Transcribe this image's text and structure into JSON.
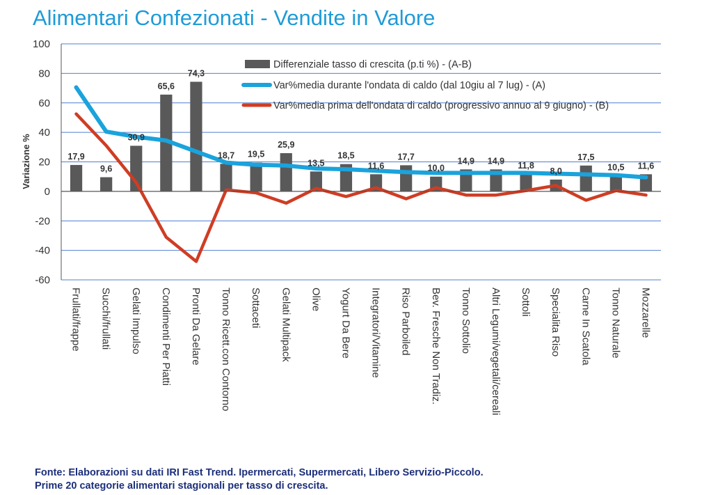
{
  "title": "Alimentari Confezionati - Vendite in Valore",
  "footer": {
    "line1": "Fonte: Elaborazioni su dati IRI Fast Trend. Ipermercati, Supermercati, Libero Servizio-Piccolo.",
    "line2": "Prime 20 categorie alimentari stagionali per tasso di crescita."
  },
  "chart_data": {
    "type": "bar",
    "ylabel": "Variazione %",
    "xlabel": "",
    "ylim": [
      -60,
      100
    ],
    "yticks": [
      100,
      80,
      60,
      40,
      20,
      0,
      -20,
      -40,
      -60
    ],
    "grid": true,
    "legend_position": "top-right",
    "categories": [
      "Frullati/frappe",
      "Succhi/frullati",
      "Gelati Impulso",
      "Condimenti Per Piatti",
      "Pronti Da Gelare",
      "Tonno Ricett.con Contorno",
      "Sottaceti",
      "Gelati Multipack",
      "Olive",
      "Yogurt Da Bere",
      "Integratori/Vitamine",
      "Riso Parboiled",
      "Bev. Fresche Non Tradiz.",
      "Tonno Sottolio",
      "Altri Legumi/vegetali/cereali",
      "Sottoli",
      "Specialita Riso",
      "Carne In Scatola",
      "Tonno Naturale",
      "Mozzarelle"
    ],
    "series": [
      {
        "name": "Differenziale tasso di crescita  (p.ti %) - (A-B)",
        "type": "bar",
        "color": "#595959",
        "values": [
          17.9,
          9.6,
          30.9,
          65.6,
          74.3,
          18.7,
          19.5,
          25.9,
          13.5,
          18.5,
          11.6,
          17.7,
          10.0,
          14.9,
          14.9,
          11.8,
          8.0,
          17.5,
          10.5,
          11.6
        ],
        "labels": [
          "17,9",
          "9,6",
          "30,9",
          "65,6",
          "74,3",
          "18,7",
          "19,5",
          "25,9",
          "13,5",
          "18,5",
          "11,6",
          "17,7",
          "10,0",
          "14,9",
          "14,9",
          "11,8",
          "8,0",
          "17,5",
          "10,5",
          "11,6"
        ]
      },
      {
        "name": "Var%media durante l'ondata di caldo (dal 10giu al 7 lug) - (A)",
        "type": "line",
        "color": "#1aa3dc",
        "values": [
          70.5,
          40.5,
          37,
          34.5,
          27,
          19.5,
          18,
          17.5,
          15.5,
          15,
          14,
          13,
          12.5,
          12.5,
          12.5,
          12.5,
          12,
          11.5,
          11,
          9.5
        ]
      },
      {
        "name": "Var%media prima dell'ondata di caldo (progressivo annuo al 9 giugno) - (B)",
        "type": "line",
        "color": "#cf3d24",
        "values": [
          52.5,
          31,
          6,
          -31,
          -47.5,
          1,
          -1,
          -8,
          2,
          -3.5,
          2.5,
          -5,
          2.5,
          -2.5,
          -2.5,
          0.5,
          4,
          -6,
          0.5,
          -2.5
        ]
      }
    ]
  }
}
